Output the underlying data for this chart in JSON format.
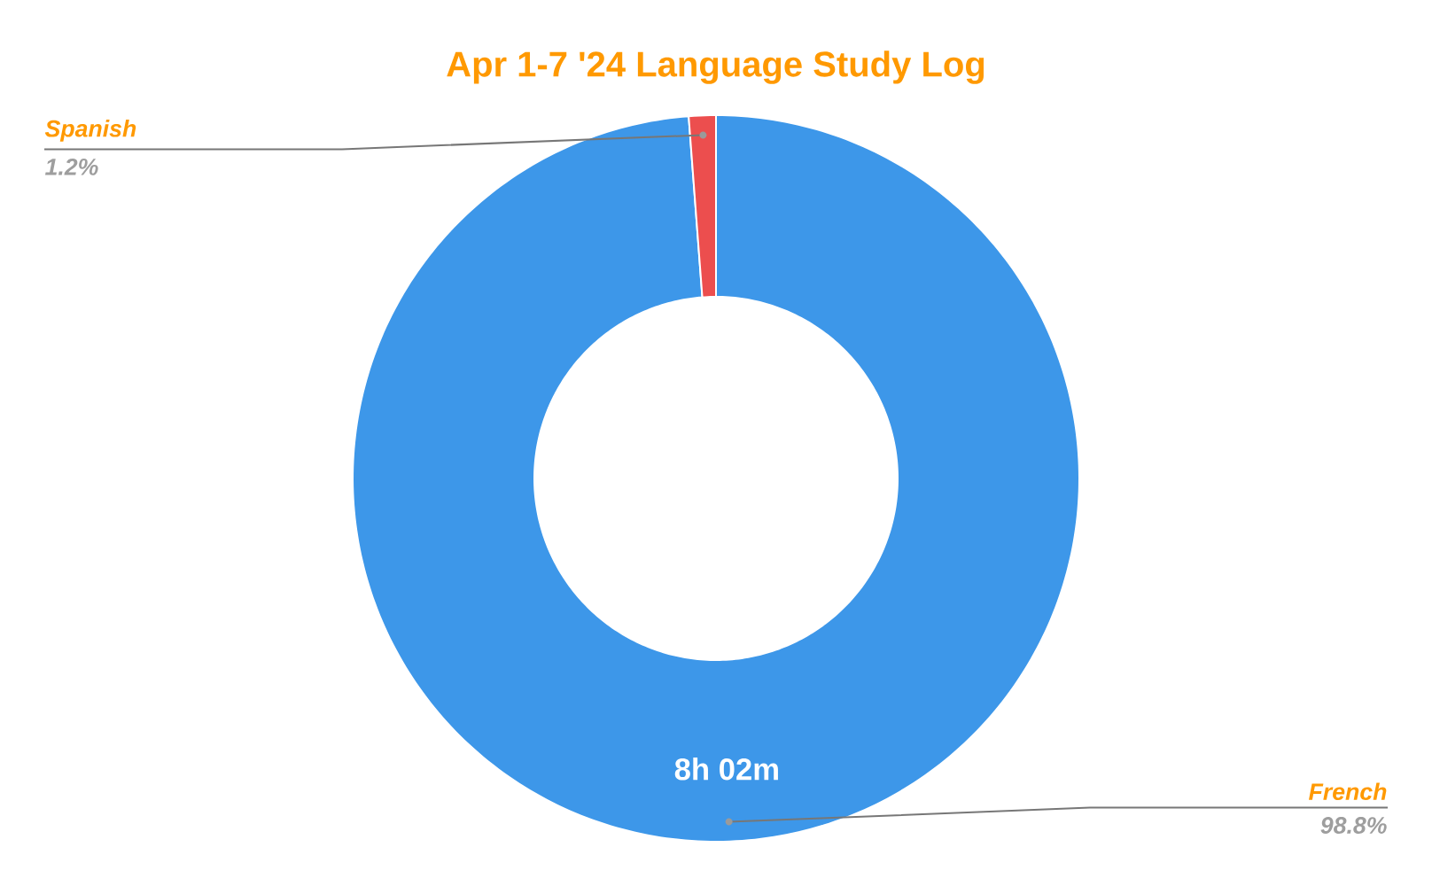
{
  "chart_data": {
    "type": "donut",
    "title": "Apr 1-7 '24 Language Study Log",
    "categories": [
      "French",
      "Spanish"
    ],
    "values": [
      98.8,
      1.2
    ],
    "colors": [
      "#3d97e9",
      "#ec4e4e"
    ],
    "value_labels": [
      "98.8%",
      "1.2%"
    ],
    "annotations": [
      {
        "text": "8h 02m",
        "x": "French"
      }
    ]
  }
}
